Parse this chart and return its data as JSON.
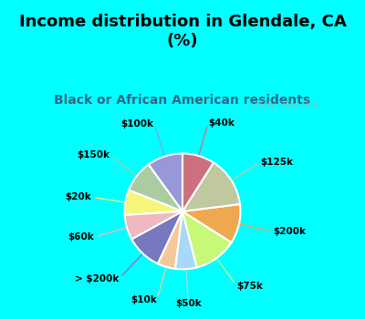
{
  "title": "Income distribution in Glendale, CA\n(%)",
  "subtitle": "Black or African American residents",
  "bg_cyan": "#00FFFF",
  "bg_chart_color": "#d8f0e4",
  "labels": [
    "$100k",
    "$150k",
    "$20k",
    "$60k",
    "> $200k",
    "$10k",
    "$50k",
    "$75k",
    "$200k",
    "$125k",
    "$40k"
  ],
  "values": [
    10,
    9,
    7,
    7,
    10,
    5,
    6,
    12,
    11,
    14,
    9
  ],
  "colors": [
    "#9898d8",
    "#aacca0",
    "#f5f57a",
    "#f0b8c0",
    "#7878c0",
    "#f5c898",
    "#a8d8f8",
    "#c8f878",
    "#f0a850",
    "#c0c8a0",
    "#cc7080"
  ],
  "line_colors": [
    "#9898d8",
    "#aacca0",
    "#f5f57a",
    "#f0b8c0",
    "#7878c0",
    "#f5c898",
    "#a8d8f8",
    "#c8f878",
    "#f0a850",
    "#c0c8a0",
    "#cc7080"
  ],
  "watermark": "City-Data.com",
  "title_fontsize": 13,
  "subtitle_fontsize": 10,
  "label_fontsize": 7.5
}
